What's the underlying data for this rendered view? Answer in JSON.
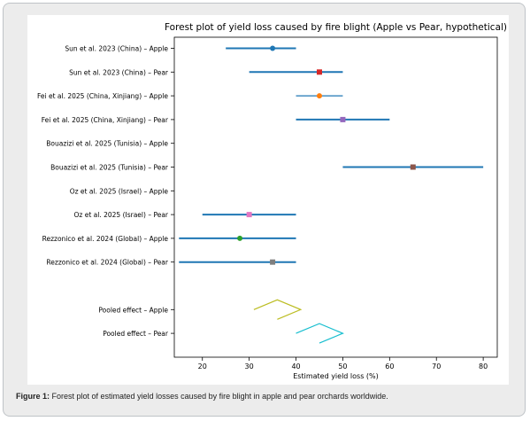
{
  "caption": {
    "label": "Figure 1:",
    "text": " Forest plot of estimated yield losses caused by fire blight in apple and pear orchards worldwide."
  },
  "chart_data": {
    "type": "forest",
    "title": "Forest plot of yield loss caused by fire blight (Apple vs Pear, hypothetical)",
    "xlabel": "Estimated yield loss (%)",
    "ylabel": "",
    "xlim": [
      14,
      83
    ],
    "xticks": [
      20,
      30,
      40,
      50,
      60,
      70,
      80
    ],
    "grid": false,
    "studies": [
      {
        "label": "Sun et al. 2023 (China) – Apple",
        "estimate": 35,
        "ci_low": 25,
        "ci_high": 40,
        "marker": "circle",
        "color": "#1f77b4"
      },
      {
        "label": "Sun et al. 2023 (China) – Pear",
        "estimate": 45,
        "ci_low": 30,
        "ci_high": 50,
        "marker": "square",
        "color": "#d62728"
      },
      {
        "label": "Fei et al. 2025 (China, Xinjiang) – Apple",
        "estimate": 45,
        "ci_low": 40,
        "ci_high": 50,
        "marker": "circle",
        "color": "#ff7f0e"
      },
      {
        "label": "Fei et al. 2025 (China, Xinjiang) – Pear",
        "estimate": 50,
        "ci_low": 40,
        "ci_high": 60,
        "marker": "square",
        "color": "#9467bd"
      },
      {
        "label": "Bouazizi et al. 2025 (Tunisia) – Apple",
        "estimate": null,
        "ci_low": null,
        "ci_high": null,
        "marker": "none",
        "color": "#1f77b4"
      },
      {
        "label": "Bouazizi et al. 2025 (Tunisia) – Pear",
        "estimate": 65,
        "ci_low": 50,
        "ci_high": 80,
        "marker": "square",
        "color": "#8c564b"
      },
      {
        "label": "Oz et al. 2025 (Israel) – Apple",
        "estimate": null,
        "ci_low": null,
        "ci_high": null,
        "marker": "none",
        "color": "#1f77b4"
      },
      {
        "label": "Oz et al. 2025 (Israel) – Pear",
        "estimate": 30,
        "ci_low": 20,
        "ci_high": 40,
        "marker": "square",
        "color": "#e377c2"
      },
      {
        "label": "Rezzonico et al. 2024 (Global) – Apple",
        "estimate": 28,
        "ci_low": 15,
        "ci_high": 40,
        "marker": "circle",
        "color": "#2ca02c"
      },
      {
        "label": "Rezzonico et al. 2024 (Global) – Pear",
        "estimate": 35,
        "ci_low": 15,
        "ci_high": 40,
        "marker": "square",
        "color": "#7f7f7f"
      }
    ],
    "ci_color": "#1f77b4",
    "pooled": [
      {
        "label": "Pooled effect – Apple",
        "estimate": 36,
        "ci_low": 31,
        "ci_high": 41,
        "color": "#bcbd22"
      },
      {
        "label": "Pooled effect – Pear",
        "estimate": 45,
        "ci_low": 40,
        "ci_high": 50,
        "color": "#17becf"
      }
    ]
  }
}
